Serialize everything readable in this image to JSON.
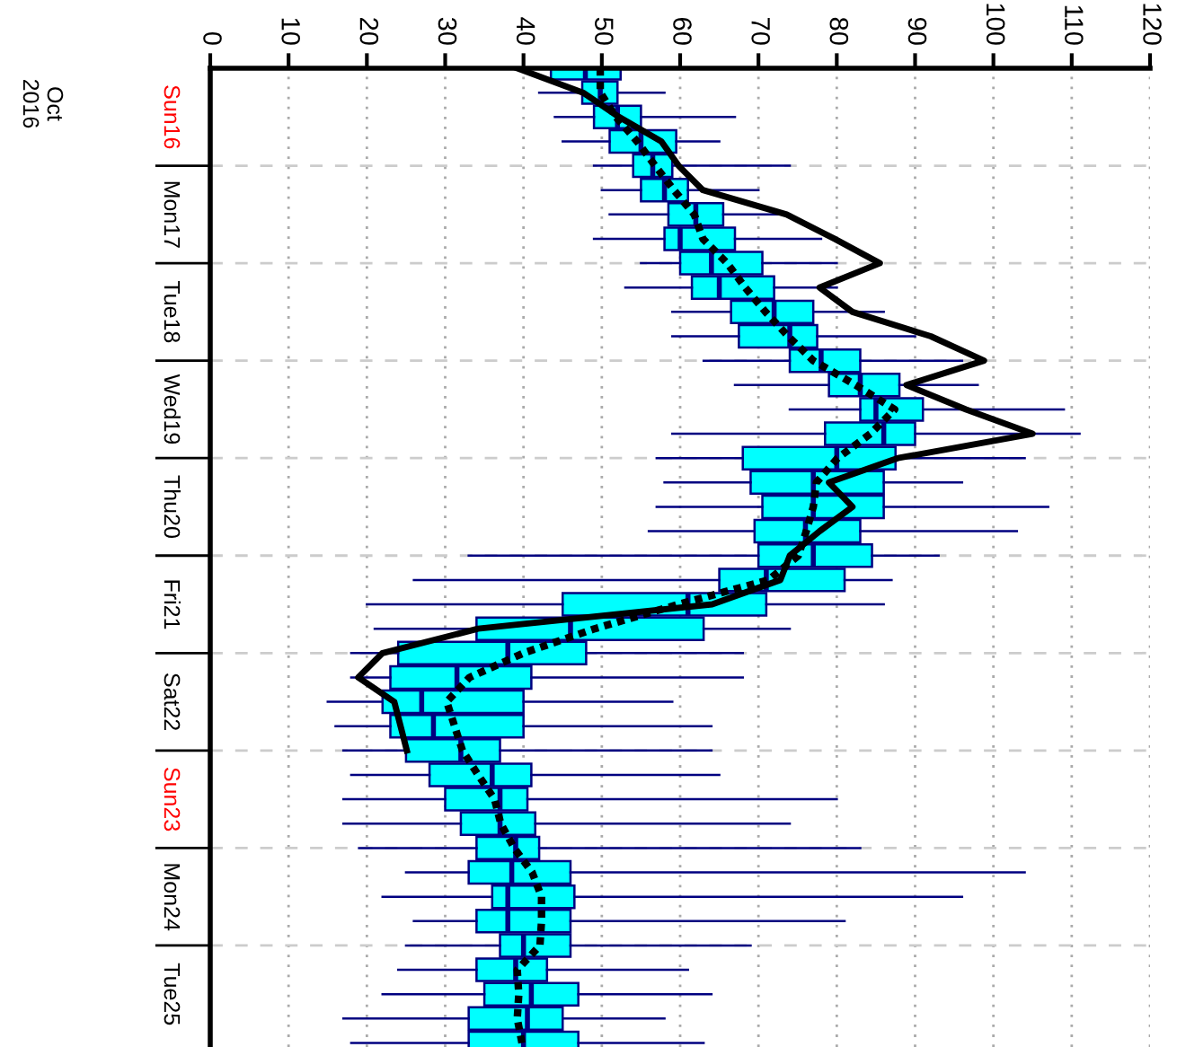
{
  "chart_data": {
    "type": "box",
    "orientation": "horizontal",
    "x": [
      "2016-10-16T00:00",
      "2016-10-16T06:00",
      "2016-10-16T12:00",
      "2016-10-16T18:00",
      "2016-10-17T00:00",
      "2016-10-17T06:00",
      "2016-10-17T12:00",
      "2016-10-17T18:00",
      "2016-10-18T00:00",
      "2016-10-18T06:00",
      "2016-10-18T12:00",
      "2016-10-18T18:00",
      "2016-10-19T00:00",
      "2016-10-19T06:00",
      "2016-10-19T12:00",
      "2016-10-19T18:00",
      "2016-10-20T00:00",
      "2016-10-20T06:00",
      "2016-10-20T12:00",
      "2016-10-20T18:00",
      "2016-10-21T00:00",
      "2016-10-21T06:00",
      "2016-10-21T12:00",
      "2016-10-21T18:00",
      "2016-10-22T00:00",
      "2016-10-22T06:00",
      "2016-10-22T12:00",
      "2016-10-22T18:00",
      "2016-10-23T00:00",
      "2016-10-23T06:00",
      "2016-10-23T12:00",
      "2016-10-23T18:00",
      "2016-10-24T00:00",
      "2016-10-24T06:00",
      "2016-10-24T12:00",
      "2016-10-24T18:00",
      "2016-10-25T00:00",
      "2016-10-25T06:00",
      "2016-10-25T12:00",
      "2016-10-25T18:00",
      "2016-10-26T00:00"
    ],
    "series": [
      {
        "color": "#00ffff",
        "boxes": [
          {
            "low": 36,
            "q1": 43.5,
            "median": 47.9,
            "q3": 52.4,
            "high": 78
          },
          {
            "low": 42,
            "q1": 47.5,
            "median": 49.8,
            "q3": 52,
            "high": 58
          },
          {
            "low": 44,
            "q1": 49,
            "median": 52,
            "q3": 55,
            "high": 67
          },
          {
            "low": 45,
            "q1": 51,
            "median": 55,
            "q3": 59.5,
            "high": 65
          },
          {
            "low": 49,
            "q1": 54,
            "median": 56.5,
            "q3": 59,
            "high": 74
          },
          {
            "low": 50,
            "q1": 55,
            "median": 58,
            "q3": 61,
            "high": 70
          },
          {
            "low": 51,
            "q1": 58.5,
            "median": 62,
            "q3": 65.5,
            "high": 74
          },
          {
            "low": 49,
            "q1": 58,
            "median": 60,
            "q3": 67,
            "high": 78
          },
          {
            "low": 55,
            "q1": 60,
            "median": 64,
            "q3": 70.5,
            "high": 80
          },
          {
            "low": 53,
            "q1": 61.5,
            "median": 65,
            "q3": 72,
            "high": 80
          },
          {
            "low": 59,
            "q1": 66.5,
            "median": 72,
            "q3": 77,
            "high": 86
          },
          {
            "low": 59,
            "q1": 67.5,
            "median": 74,
            "q3": 77.5,
            "high": 90
          },
          {
            "low": 63,
            "q1": 74,
            "median": 78,
            "q3": 83,
            "high": 96
          },
          {
            "low": 67,
            "q1": 79,
            "median": 83,
            "q3": 88,
            "high": 98
          },
          {
            "low": 74,
            "q1": 83,
            "median": 85,
            "q3": 91,
            "high": 109
          },
          {
            "low": 59,
            "q1": 78.5,
            "median": 86,
            "q3": 90,
            "high": 111
          },
          {
            "low": 57,
            "q1": 68,
            "median": 80,
            "q3": 87.5,
            "high": 104
          },
          {
            "low": 58,
            "q1": 69,
            "median": 77,
            "q3": 86,
            "high": 96
          },
          {
            "low": 57,
            "q1": 70.5,
            "median": 77,
            "q3": 86,
            "high": 107
          },
          {
            "low": 56,
            "q1": 69.5,
            "median": 76,
            "q3": 83,
            "high": 103
          },
          {
            "low": 33,
            "q1": 70,
            "median": 77,
            "q3": 84.5,
            "high": 93
          },
          {
            "low": 26,
            "q1": 65,
            "median": 71,
            "q3": 81,
            "high": 87
          },
          {
            "low": 20,
            "q1": 45,
            "median": 61,
            "q3": 71,
            "high": 86
          },
          {
            "low": 21,
            "q1": 34,
            "median": 46,
            "q3": 63,
            "high": 74
          },
          {
            "low": 18,
            "q1": 24,
            "median": 38,
            "q3": 48,
            "high": 68
          },
          {
            "low": 18,
            "q1": 23,
            "median": 31.5,
            "q3": 41,
            "high": 68
          },
          {
            "low": 15,
            "q1": 22,
            "median": 27,
            "q3": 40,
            "high": 59
          },
          {
            "low": 16,
            "q1": 23,
            "median": 28.5,
            "q3": 40,
            "high": 64
          },
          {
            "low": 17,
            "q1": 25,
            "median": 32,
            "q3": 37,
            "high": 64
          },
          {
            "low": 18,
            "q1": 28,
            "median": 36,
            "q3": 41,
            "high": 65
          },
          {
            "low": 17,
            "q1": 30,
            "median": 37,
            "q3": 40.5,
            "high": 80
          },
          {
            "low": 17,
            "q1": 32,
            "median": 37,
            "q3": 41.5,
            "high": 74
          },
          {
            "low": 19,
            "q1": 34,
            "median": 39,
            "q3": 42,
            "high": 83
          },
          {
            "low": 25,
            "q1": 33,
            "median": 38.5,
            "q3": 46,
            "high": 104
          },
          {
            "low": 22,
            "q1": 36,
            "median": 38,
            "q3": 46.5,
            "high": 96
          },
          {
            "low": 26,
            "q1": 34,
            "median": 38,
            "q3": 46,
            "high": 81
          },
          {
            "low": 25,
            "q1": 37,
            "median": 40,
            "q3": 46,
            "high": 69
          },
          {
            "low": 24,
            "q1": 34,
            "median": 39,
            "q3": 43,
            "high": 61
          },
          {
            "low": 22,
            "q1": 35,
            "median": 41,
            "q3": 47,
            "high": 64
          },
          {
            "low": 17,
            "q1": 33,
            "median": 40.5,
            "q3": 45,
            "high": 58
          },
          {
            "low": 18,
            "q1": 33,
            "median": 40,
            "q3": 47,
            "high": 63
          }
        ]
      },
      {
        "type": "line",
        "color": "#000000",
        "line_style": "dotted",
        "values": [
          49.8,
          49.8,
          51.8,
          54.5,
          56.8,
          59.2,
          61.8,
          62.9,
          66,
          68.3,
          70.9,
          73.8,
          77,
          82.4,
          87.4,
          84.3,
          80.1,
          77.4,
          77,
          76.1,
          75.1,
          71.3,
          59.8,
          49.1,
          40,
          33.1,
          30.2,
          31.2,
          32.2,
          34.2,
          36.3,
          37.1,
          38.8,
          41.1,
          42.3,
          42.3,
          42.1,
          39.2,
          39.4,
          39.2,
          39.8
        ]
      },
      {
        "type": "line",
        "color": "#000000",
        "line_style": "solid",
        "x": [
          "2016-10-16T00:00",
          "2016-10-16T06:00",
          "2016-10-16T12:00",
          "2016-10-16T18:00",
          "2016-10-17T00:00",
          "2016-10-17T06:00",
          "2016-10-17T12:00",
          "2016-10-17T18:00",
          "2016-10-18T00:00",
          "2016-10-18T06:00",
          "2016-10-18T12:00",
          "2016-10-18T18:00",
          "2016-10-19T00:00",
          "2016-10-19T06:00",
          "2016-10-19T12:00",
          "2016-10-19T18:00",
          "2016-10-20T00:00",
          "2016-10-20T06:00",
          "2016-10-20T12:00",
          "2016-10-20T18:00",
          "2016-10-21T00:00",
          "2016-10-21T06:00",
          "2016-10-21T12:00",
          "2016-10-21T18:00",
          "2016-10-22T00:00",
          "2016-10-22T06:00",
          "2016-10-22T12:00",
          "2016-10-22T18:00",
          "2016-10-23T00:00"
        ],
        "values": [
          39.2,
          47.6,
          52.2,
          57.6,
          59.8,
          62.9,
          73.6,
          79.7,
          85.5,
          77.8,
          82,
          92,
          98.8,
          88.9,
          96.5,
          105,
          87.8,
          79,
          82,
          77.8,
          74,
          72.8,
          64.1,
          34.2,
          22,
          18.9,
          23.5,
          24.3,
          25.1
        ]
      }
    ],
    "xlim": [
      0,
      120
    ],
    "xticks": [
      0,
      10,
      20,
      30,
      40,
      50,
      60,
      70,
      80,
      90,
      100,
      110,
      120
    ],
    "ylim": [
      "2016-10-26T01:00",
      "2016-10-16T00:00"
    ],
    "yticks": [
      {
        "value": "2016-10-16T12:00",
        "label": "Sun16"
      },
      {
        "value": "2016-10-17T00:00",
        "label": null
      },
      {
        "value": "2016-10-17T12:00",
        "label": "Mon17"
      },
      {
        "value": "2016-10-18T00:00",
        "label": null
      },
      {
        "value": "2016-10-18T12:00",
        "label": "Tue18"
      },
      {
        "value": "2016-10-19T00:00",
        "label": null
      },
      {
        "value": "2016-10-19T12:00",
        "label": "Wed19"
      },
      {
        "value": "2016-10-20T00:00",
        "label": null
      },
      {
        "value": "2016-10-20T12:00",
        "label": "Thu20"
      },
      {
        "value": "2016-10-21T00:00",
        "label": null
      },
      {
        "value": "2016-10-21T12:00",
        "label": "Fri21"
      },
      {
        "value": "2016-10-22T00:00",
        "label": null
      },
      {
        "value": "2016-10-22T12:00",
        "label": "Sat22"
      },
      {
        "value": "2016-10-23T00:00",
        "label": null
      },
      {
        "value": "2016-10-23T12:00",
        "label": "Sun23"
      },
      {
        "value": "2016-10-24T00:00",
        "label": null
      },
      {
        "value": "2016-10-24T12:00",
        "label": "Mon24"
      },
      {
        "value": "2016-10-25T00:00",
        "label": null
      },
      {
        "value": "2016-10-25T12:00",
        "label": "Tue25"
      }
    ],
    "annotations": [
      "Oct\n2016"
    ],
    "grid": true,
    "legend": false,
    "marker": "none"
  }
}
